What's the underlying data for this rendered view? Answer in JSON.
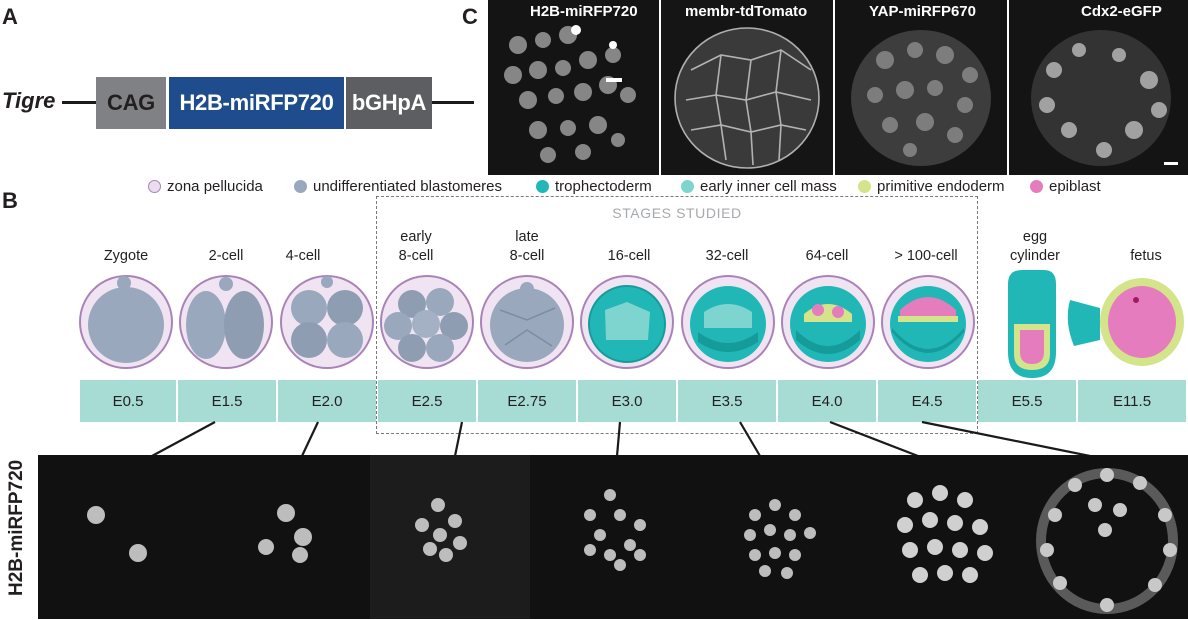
{
  "panels": {
    "a": "A",
    "b": "B",
    "c": "C"
  },
  "construct": {
    "locus": "Tigre",
    "promoter": "CAG",
    "reporter": "H2B-miRFP720",
    "polyA": "bGHpA"
  },
  "panel_c_channels": [
    "H2B-miRFP720",
    "membr-tdTomato",
    "YAP-miRFP670",
    "Cdx2-eGFP"
  ],
  "legend": [
    {
      "label": "zona pellucida",
      "color": "#ecdcef",
      "border": "#a983b8"
    },
    {
      "label": "undifferentiated blastomeres",
      "color": "#9aa8bd",
      "border": "#9aa8bd"
    },
    {
      "label": "trophectoderm",
      "color": "#22b7b7",
      "border": "#22b7b7"
    },
    {
      "label": "early inner cell mass",
      "color": "#7ed4cf",
      "border": "#7ed4cf"
    },
    {
      "label": "primitive endoderm",
      "color": "#d4e48a",
      "border": "#d4e48a"
    },
    {
      "label": "epiblast",
      "color": "#e57cbd",
      "border": "#e57cbd"
    }
  ],
  "stages_studied_label": "STAGES STUDIED",
  "stages": [
    {
      "line1": "Zygote",
      "line2": ""
    },
    {
      "line1": "2-cell",
      "line2": ""
    },
    {
      "line1": "4-cell",
      "line2": ""
    },
    {
      "line1": "early",
      "line2": "8-cell"
    },
    {
      "line1": "late",
      "line2": "8-cell"
    },
    {
      "line1": "16-cell",
      "line2": ""
    },
    {
      "line1": "32-cell",
      "line2": ""
    },
    {
      "line1": "64-cell",
      "line2": ""
    },
    {
      "line1": "> 100-cell",
      "line2": ""
    },
    {
      "line1": "egg",
      "line2": "cylinder"
    },
    {
      "line1": "fetus",
      "line2": ""
    }
  ],
  "timeline": [
    "E0.5",
    "E1.5",
    "E2.0",
    "E2.5",
    "E2.75",
    "E3.0",
    "E3.5",
    "E4.0",
    "E4.5",
    "E5.5",
    "E11.5"
  ],
  "bottom_label": "H2B-miRFP720",
  "colors": {
    "construct_blue": "#1f4c8c",
    "timeline": "#a7dcd5",
    "zona": "#a983b8"
  }
}
